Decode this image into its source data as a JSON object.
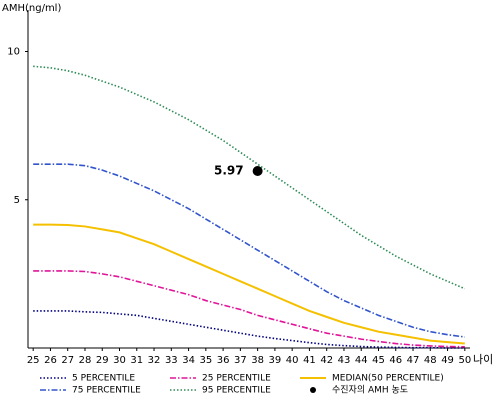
{
  "chart_data": {
    "type": "line",
    "y_label": "AMH(ng/ml)",
    "x_label": "나이",
    "x": [
      25,
      26,
      27,
      28,
      29,
      30,
      31,
      32,
      33,
      34,
      35,
      36,
      37,
      38,
      39,
      40,
      41,
      42,
      43,
      44,
      45,
      46,
      47,
      48,
      49,
      50
    ],
    "xlim": [
      24.7,
      50.3
    ],
    "xticks": [
      25,
      26,
      27,
      28,
      29,
      30,
      31,
      32,
      33,
      34,
      35,
      36,
      37,
      38,
      39,
      40,
      41,
      42,
      43,
      44,
      45,
      46,
      47,
      48,
      49,
      50
    ],
    "ylim": [
      0,
      11.4
    ],
    "yticks": [
      5,
      10
    ],
    "series": [
      {
        "name": "5 PERCENTILE",
        "color": "#000080",
        "dash": "dot",
        "values": [
          1.25,
          1.25,
          1.25,
          1.22,
          1.2,
          1.15,
          1.1,
          1.0,
          0.9,
          0.8,
          0.7,
          0.6,
          0.5,
          0.4,
          0.32,
          0.25,
          0.18,
          0.12,
          0.08,
          0.05,
          0.03,
          0.02,
          0.01,
          0.01,
          0,
          0
        ]
      },
      {
        "name": "25 PERCENTILE",
        "color": "#e0159a",
        "dash": "dashdot",
        "values": [
          2.6,
          2.6,
          2.6,
          2.58,
          2.5,
          2.4,
          2.25,
          2.1,
          1.95,
          1.8,
          1.6,
          1.45,
          1.3,
          1.1,
          0.95,
          0.8,
          0.65,
          0.5,
          0.4,
          0.3,
          0.22,
          0.15,
          0.1,
          0.07,
          0.05,
          0.04
        ]
      },
      {
        "name": "MEDIAN(50 PERCENTILE)",
        "color": "#f5c000",
        "dash": "solid",
        "values": [
          4.16,
          4.16,
          4.15,
          4.1,
          4.0,
          3.9,
          3.7,
          3.5,
          3.25,
          3.0,
          2.75,
          2.5,
          2.25,
          2.0,
          1.75,
          1.5,
          1.25,
          1.05,
          0.85,
          0.7,
          0.55,
          0.45,
          0.35,
          0.25,
          0.2,
          0.15
        ]
      },
      {
        "name": "75 PERCENTILE",
        "color": "#3355cc",
        "dash": "dashdot",
        "values": [
          6.2,
          6.2,
          6.2,
          6.15,
          6.0,
          5.8,
          5.55,
          5.3,
          5.0,
          4.7,
          4.35,
          4.0,
          3.65,
          3.3,
          2.95,
          2.6,
          2.25,
          1.9,
          1.6,
          1.35,
          1.1,
          0.9,
          0.7,
          0.55,
          0.45,
          0.37
        ]
      },
      {
        "name": "95 PERCENTILE",
        "color": "#2e8b57",
        "dash": "dot",
        "values": [
          9.5,
          9.45,
          9.35,
          9.2,
          9.0,
          8.8,
          8.55,
          8.3,
          8.0,
          7.7,
          7.35,
          7.0,
          6.6,
          6.2,
          5.8,
          5.4,
          5.0,
          4.6,
          4.2,
          3.8,
          3.45,
          3.1,
          2.8,
          2.5,
          2.25,
          2.0
        ]
      }
    ],
    "point": {
      "name": "수진자의 AMH 농도",
      "x": 38,
      "value": 5.97,
      "color": "#000000"
    }
  }
}
